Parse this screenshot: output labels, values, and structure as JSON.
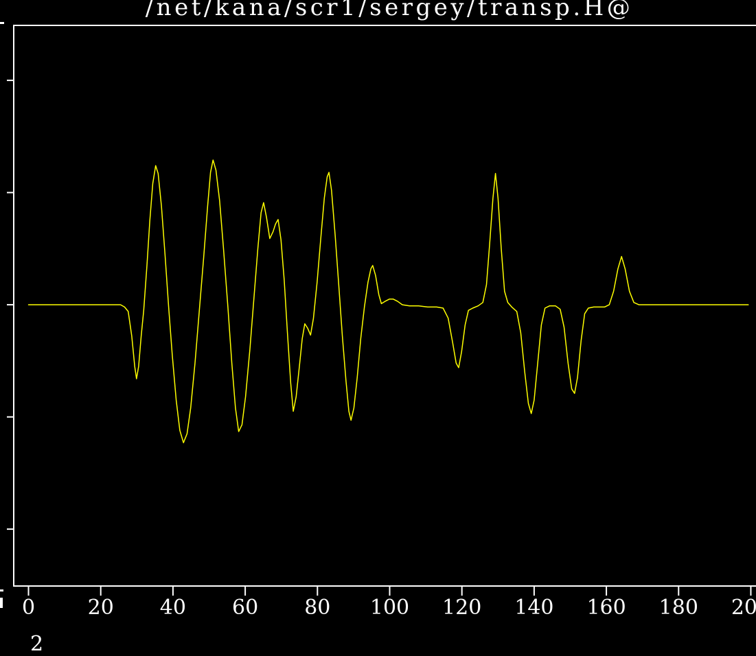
{
  "title": {
    "text": "/net/kana/scr1/sergey/transp.H@"
  },
  "colors": {
    "background": "#000000",
    "axis": "#ffffff",
    "text": "#ffffff",
    "trace": "#ffff00"
  },
  "fragments": {
    "bottom_partial_digit": "2"
  },
  "chart_data": {
    "type": "line",
    "title": "/net/kana/scr1/sergey/transp.H@",
    "xlabel": "",
    "ylabel": "",
    "grid": false,
    "legend": null,
    "x_ticks": [
      0,
      20,
      40,
      60,
      80,
      100,
      120,
      140,
      160,
      180,
      200
    ],
    "x_tick_labels": [
      "0",
      "20",
      "40",
      "60",
      "80",
      "100",
      "120",
      "140",
      "160",
      "180",
      "200"
    ],
    "y_ticks": [
      2,
      1,
      0,
      -1,
      -2
    ],
    "y_tick_labels": [
      "",
      "",
      "",
      "",
      ""
    ],
    "y_labels_cut_off": true,
    "xlim": [
      -4.09,
      201.43
    ],
    "ylim": [
      -2.507,
      2.49
    ],
    "series": [
      {
        "name": "trace",
        "color": "#ffff00",
        "points": [
          [
            0,
            0
          ],
          [
            5,
            0
          ],
          [
            10,
            0
          ],
          [
            15,
            0
          ],
          [
            20,
            0
          ],
          [
            24,
            0
          ],
          [
            25.5,
            0
          ],
          [
            26.6,
            -0.02
          ],
          [
            27.6,
            -0.06
          ],
          [
            28.6,
            -0.28
          ],
          [
            29.4,
            -0.55
          ],
          [
            29.9,
            -0.66
          ],
          [
            30.5,
            -0.55
          ],
          [
            31.2,
            -0.28
          ],
          [
            31.9,
            -0.05
          ],
          [
            32.8,
            0.35
          ],
          [
            33.6,
            0.75
          ],
          [
            34.4,
            1.08
          ],
          [
            35.2,
            1.24
          ],
          [
            35.9,
            1.17
          ],
          [
            36.8,
            0.88
          ],
          [
            37.8,
            0.45
          ],
          [
            38.8,
            -0.02
          ],
          [
            39.8,
            -0.45
          ],
          [
            40.9,
            -0.85
          ],
          [
            41.9,
            -1.12
          ],
          [
            42.9,
            -1.23
          ],
          [
            43.9,
            -1.15
          ],
          [
            44.9,
            -0.92
          ],
          [
            46.1,
            -0.52
          ],
          [
            47.3,
            -0.05
          ],
          [
            48.5,
            0.42
          ],
          [
            49.6,
            0.88
          ],
          [
            50.4,
            1.18
          ],
          [
            51.1,
            1.29
          ],
          [
            51.9,
            1.2
          ],
          [
            52.9,
            0.93
          ],
          [
            54,
            0.5
          ],
          [
            55.2,
            -0.02
          ],
          [
            56.3,
            -0.52
          ],
          [
            57.3,
            -0.92
          ],
          [
            58.2,
            -1.13
          ],
          [
            59.1,
            -1.07
          ],
          [
            60.1,
            -0.82
          ],
          [
            61.3,
            -0.4
          ],
          [
            62.4,
            0.05
          ],
          [
            63.5,
            0.5
          ],
          [
            64.4,
            0.82
          ],
          [
            65.1,
            0.91
          ],
          [
            65.9,
            0.78
          ],
          [
            66.8,
            0.59
          ],
          [
            67.7,
            0.65
          ],
          [
            68.4,
            0.72
          ],
          [
            69.1,
            0.76
          ],
          [
            69.9,
            0.58
          ],
          [
            70.8,
            0.22
          ],
          [
            71.7,
            -0.25
          ],
          [
            72.6,
            -0.7
          ],
          [
            73.3,
            -0.95
          ],
          [
            74.1,
            -0.82
          ],
          [
            75,
            -0.55
          ],
          [
            75.8,
            -0.3
          ],
          [
            76.5,
            -0.17
          ],
          [
            77.3,
            -0.21
          ],
          [
            78.1,
            -0.27
          ],
          [
            78.9,
            -0.12
          ],
          [
            79.9,
            0.2
          ],
          [
            80.9,
            0.58
          ],
          [
            81.9,
            0.95
          ],
          [
            82.7,
            1.14
          ],
          [
            83.2,
            1.18
          ],
          [
            83.9,
            1.02
          ],
          [
            84.9,
            0.62
          ],
          [
            85.9,
            0.18
          ],
          [
            86.9,
            -0.28
          ],
          [
            87.9,
            -0.68
          ],
          [
            88.7,
            -0.95
          ],
          [
            89.3,
            -1.03
          ],
          [
            90.1,
            -0.92
          ],
          [
            91,
            -0.65
          ],
          [
            92,
            -0.3
          ],
          [
            93,
            -0.02
          ],
          [
            94,
            0.2
          ],
          [
            94.8,
            0.32
          ],
          [
            95.3,
            0.35
          ],
          [
            96.1,
            0.26
          ],
          [
            97,
            0.09
          ],
          [
            97.7,
            0.01
          ],
          [
            98.7,
            0.03
          ],
          [
            99.9,
            0.05
          ],
          [
            101,
            0.05
          ],
          [
            102.2,
            0.03
          ],
          [
            103.5,
            0
          ],
          [
            105.5,
            -0.01
          ],
          [
            108,
            -0.01
          ],
          [
            110.5,
            -0.02
          ],
          [
            113,
            -0.02
          ],
          [
            114.8,
            -0.03
          ],
          [
            116.2,
            -0.12
          ],
          [
            117.4,
            -0.33
          ],
          [
            118.4,
            -0.52
          ],
          [
            119.1,
            -0.56
          ],
          [
            119.9,
            -0.42
          ],
          [
            120.9,
            -0.18
          ],
          [
            121.8,
            -0.05
          ],
          [
            123,
            -0.03
          ],
          [
            124.5,
            -0.01
          ],
          [
            125.8,
            0.02
          ],
          [
            126.8,
            0.18
          ],
          [
            127.7,
            0.55
          ],
          [
            128.6,
            0.95
          ],
          [
            129.3,
            1.17
          ],
          [
            130,
            0.95
          ],
          [
            130.9,
            0.5
          ],
          [
            131.8,
            0.12
          ],
          [
            132.7,
            0.02
          ],
          [
            133.8,
            -0.02
          ],
          [
            135.2,
            -0.06
          ],
          [
            136.3,
            -0.25
          ],
          [
            137.4,
            -0.6
          ],
          [
            138.4,
            -0.88
          ],
          [
            139.2,
            -0.97
          ],
          [
            140,
            -0.85
          ],
          [
            141,
            -0.52
          ],
          [
            142,
            -0.18
          ],
          [
            143,
            -0.03
          ],
          [
            144.3,
            -0.01
          ],
          [
            145.9,
            -0.01
          ],
          [
            147.2,
            -0.04
          ],
          [
            148.3,
            -0.2
          ],
          [
            149.4,
            -0.52
          ],
          [
            150.4,
            -0.75
          ],
          [
            151.2,
            -0.79
          ],
          [
            152,
            -0.65
          ],
          [
            153,
            -0.32
          ],
          [
            154,
            -0.08
          ],
          [
            155,
            -0.03
          ],
          [
            156.5,
            -0.02
          ],
          [
            158,
            -0.02
          ],
          [
            159.5,
            -0.02
          ],
          [
            160.8,
            0
          ],
          [
            162,
            0.12
          ],
          [
            163.2,
            0.32
          ],
          [
            164.2,
            0.43
          ],
          [
            165.2,
            0.32
          ],
          [
            166.4,
            0.12
          ],
          [
            167.6,
            0.02
          ],
          [
            169,
            0
          ],
          [
            172,
            0
          ],
          [
            176,
            0
          ],
          [
            181,
            0
          ],
          [
            186,
            0
          ],
          [
            192,
            0
          ],
          [
            199.3,
            0
          ]
        ]
      }
    ]
  }
}
